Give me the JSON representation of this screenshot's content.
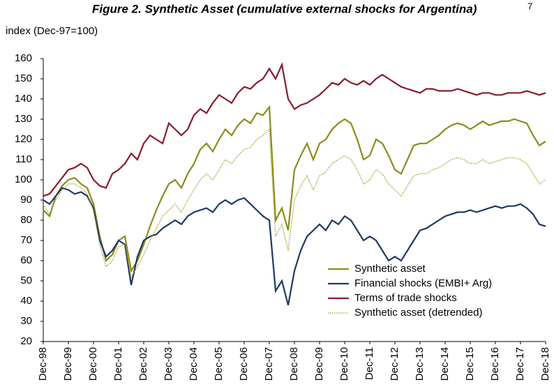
{
  "chart_data": {
    "type": "line",
    "title": "Figure 2. Synthetic Asset (cumulative external shocks for Argentina)",
    "title_superscript": "7",
    "y_axis_label": "index (Dec-97=100)",
    "categories": [
      "Dec-98",
      null,
      null,
      null,
      "Dec-99",
      null,
      null,
      null,
      "Dec-00",
      null,
      null,
      null,
      "Dec-01",
      null,
      null,
      null,
      "Dec-02",
      null,
      null,
      null,
      "Dec-03",
      null,
      null,
      null,
      "Dec-04",
      null,
      null,
      null,
      "Dec-05",
      null,
      null,
      null,
      "Dec-06",
      null,
      null,
      null,
      "Dec-07",
      null,
      null,
      null,
      "Dec-08",
      null,
      null,
      null,
      "Dec-09",
      null,
      null,
      null,
      "Dec-10",
      null,
      null,
      null,
      "Dec-11",
      null,
      null,
      null,
      "Dec-12",
      null,
      null,
      null,
      "Dec-13",
      null,
      null,
      null,
      "Dec-14",
      null,
      null,
      null,
      "Dec-15",
      null,
      null,
      null,
      "Dec-16",
      null,
      null,
      null,
      "Dec-17",
      null,
      null,
      null,
      "Dec-18"
    ],
    "ylim": [
      20,
      160
    ],
    "yticks": [
      20,
      30,
      40,
      50,
      60,
      70,
      80,
      90,
      100,
      110,
      120,
      130,
      140,
      150,
      160
    ],
    "legend": "lower-right",
    "series": [
      {
        "name": "Synthetic asset",
        "color": "#8c8c1a",
        "dash": false,
        "values": [
          85,
          82,
          92,
          97,
          100,
          101,
          98,
          96,
          88,
          72,
          60,
          63,
          70,
          72,
          55,
          60,
          68,
          77,
          85,
          92,
          98,
          100,
          96,
          103,
          108,
          115,
          118,
          114,
          120,
          125,
          122,
          127,
          130,
          128,
          133,
          132,
          136,
          80,
          86,
          75,
          105,
          112,
          118,
          110,
          118,
          120,
          125,
          128,
          130,
          128,
          120,
          110,
          112,
          120,
          118,
          112,
          105,
          103,
          110,
          117,
          118,
          118,
          120,
          122,
          125,
          127,
          128,
          127,
          125,
          127,
          129,
          127,
          128,
          129,
          129,
          130,
          129,
          128,
          122,
          117,
          119
        ]
      },
      {
        "name": "Financial shocks (EMBI+ Arg)",
        "color": "#1f3864",
        "dash": false,
        "values": [
          90,
          88,
          92,
          96,
          95,
          93,
          94,
          92,
          86,
          70,
          62,
          65,
          70,
          68,
          48,
          62,
          70,
          72,
          73,
          76,
          78,
          80,
          78,
          82,
          84,
          85,
          86,
          84,
          88,
          90,
          88,
          90,
          91,
          88,
          85,
          82,
          80,
          45,
          50,
          38,
          55,
          65,
          72,
          75,
          78,
          75,
          80,
          78,
          82,
          80,
          75,
          70,
          72,
          70,
          65,
          60,
          62,
          60,
          65,
          70,
          75,
          76,
          78,
          80,
          82,
          83,
          84,
          84,
          85,
          84,
          85,
          86,
          87,
          86,
          87,
          87,
          88,
          86,
          83,
          78,
          77
        ]
      },
      {
        "name": "Terms of trade shocks",
        "color": "#8b1a2f",
        "dash": false,
        "values": [
          92,
          93,
          97,
          101,
          105,
          106,
          108,
          106,
          100,
          97,
          96,
          103,
          105,
          108,
          113,
          110,
          118,
          122,
          120,
          118,
          128,
          125,
          122,
          125,
          132,
          135,
          133,
          138,
          142,
          140,
          138,
          143,
          146,
          145,
          148,
          150,
          155,
          150,
          157,
          140,
          135,
          137,
          138,
          140,
          142,
          145,
          148,
          147,
          150,
          148,
          147,
          149,
          147,
          150,
          152,
          150,
          148,
          146,
          145,
          144,
          143,
          145,
          145,
          144,
          144,
          144,
          145,
          144,
          143,
          142,
          143,
          143,
          142,
          142,
          143,
          143,
          143,
          144,
          143,
          142,
          143
        ]
      },
      {
        "name": "Synthetic asset (detrended)",
        "color": "#9a9a2a",
        "dash": true,
        "values": [
          88,
          83,
          90,
          95,
          98,
          98,
          96,
          93,
          85,
          68,
          57,
          60,
          67,
          68,
          52,
          57,
          63,
          70,
          76,
          82,
          85,
          88,
          84,
          90,
          95,
          100,
          103,
          100,
          105,
          110,
          108,
          112,
          115,
          116,
          120,
          122,
          125,
          72,
          78,
          65,
          90,
          97,
          102,
          95,
          102,
          104,
          108,
          110,
          112,
          110,
          105,
          98,
          100,
          105,
          103,
          98,
          95,
          92,
          97,
          102,
          103,
          103,
          105,
          106,
          108,
          110,
          111,
          110,
          108,
          108,
          110,
          108,
          109,
          110,
          111,
          111,
          110,
          108,
          103,
          98,
          100
        ]
      }
    ]
  }
}
